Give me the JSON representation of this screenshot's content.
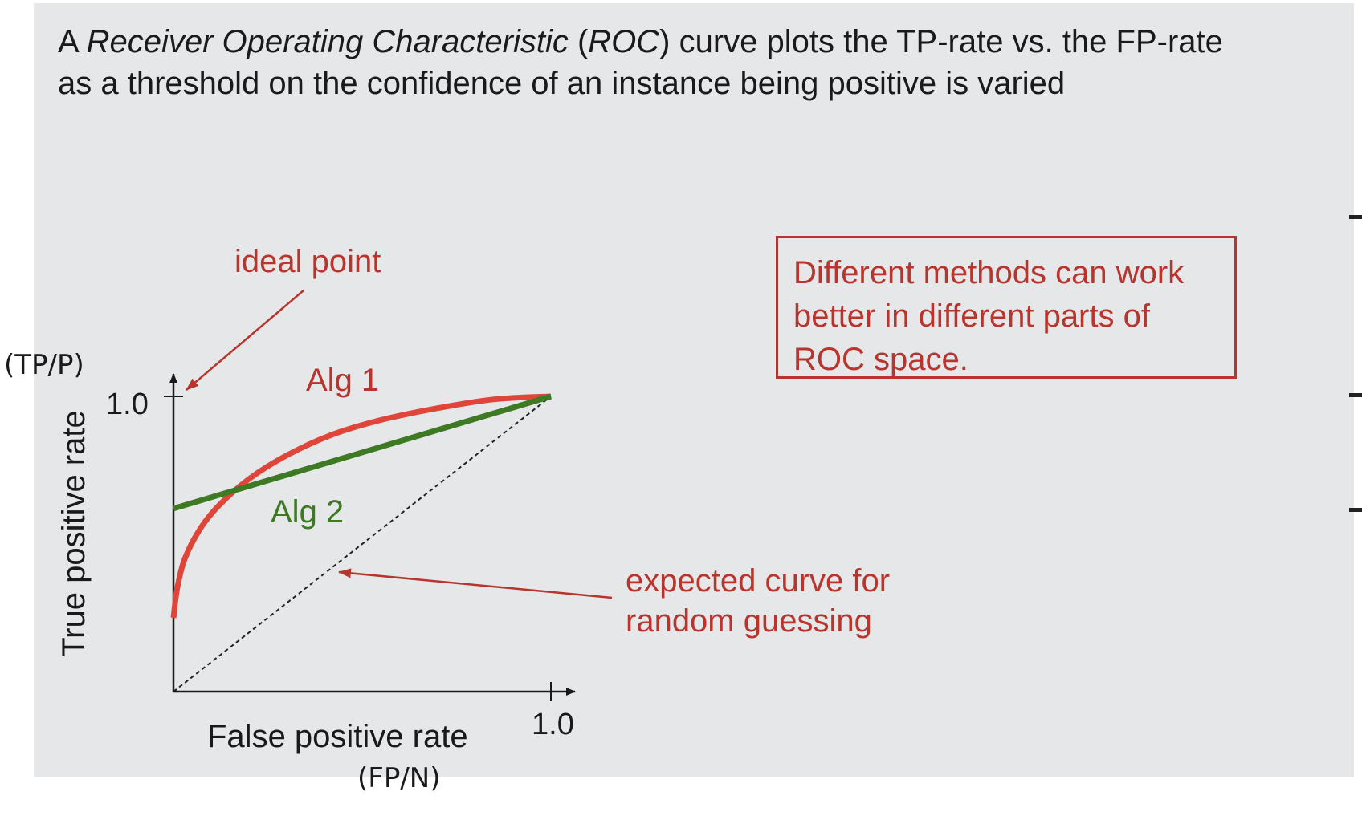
{
  "slide": {
    "title_line1": {
      "part1": "A ",
      "part2_italic": "Receiver Operating Characteristic",
      "part3": " (",
      "part4_italic": "ROC",
      "part5": ") curve plots the TP-rate vs. the FP-rate"
    },
    "title_line2": "as a threshold on the confidence of an instance being positive is varied",
    "note_box_lines": [
      "Different methods can work",
      "better in different parts of",
      "ROC space."
    ]
  },
  "chart_data": {
    "type": "line",
    "xlabel": "False positive rate",
    "xlabel_unit": "(FP/N)",
    "ylabel": "True positive rate",
    "ylabel_unit": "(TP/P)",
    "xlim": [
      0,
      1.0
    ],
    "ylim": [
      0,
      1.0
    ],
    "x_tick_label": "1.0",
    "y_tick_label": "1.0",
    "grid": false,
    "series": [
      {
        "name": "Alg 1",
        "color": "#e0453a",
        "x": [
          0.0,
          0.01,
          0.03,
          0.07,
          0.12,
          0.2,
          0.3,
          0.42,
          0.55,
          0.7,
          0.85,
          1.0
        ],
        "y": [
          0.25,
          0.35,
          0.45,
          0.55,
          0.63,
          0.72,
          0.8,
          0.87,
          0.92,
          0.96,
          0.99,
          1.0
        ]
      },
      {
        "name": "Alg 2",
        "color": "#3d7a23",
        "x": [
          0.0,
          1.0
        ],
        "y": [
          0.62,
          1.0
        ]
      },
      {
        "name": "random",
        "style": "dashed",
        "color": "#222222",
        "x": [
          0.0,
          1.0
        ],
        "y": [
          0.0,
          1.0
        ]
      }
    ],
    "annotations": {
      "ideal_point": "ideal point",
      "random_guess_line1": "expected curve for",
      "random_guess_line2": "random guessing"
    },
    "colors": {
      "annotation_red": "#b8342c",
      "axis": "#1a1a1a"
    }
  }
}
